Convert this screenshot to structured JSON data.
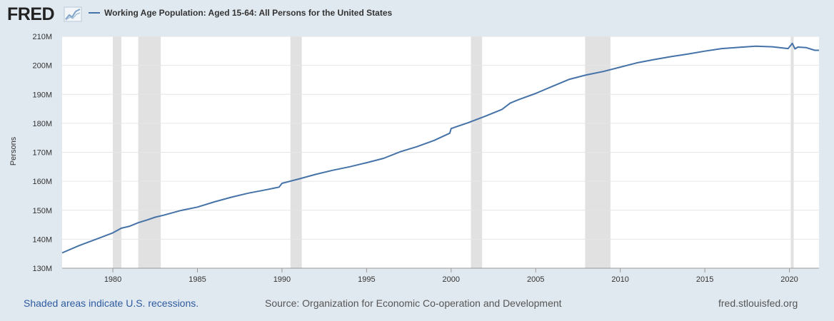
{
  "header": {
    "logo_text": "FRED",
    "logo_icon": "line-graph-icon",
    "legend_label": "Working Age Population: Aged 15-64: All Persons for the United States"
  },
  "footer": {
    "recessions_note": "Shaded areas indicate U.S. recessions.",
    "source": "Source: Organization for Economic Co-operation and Development",
    "site": "fred.stlouisfed.org"
  },
  "colors": {
    "background": "#e1e9f0",
    "plot_background": "#ffffff",
    "series": "#4572a7",
    "recession": "#e1e1e1",
    "grid": "#e6e6e6"
  },
  "chart_data": {
    "type": "line",
    "title": "",
    "xlabel": "",
    "ylabel": "Persons",
    "xlim": [
      1977.0,
      2021.75
    ],
    "ylim": [
      130,
      210
    ],
    "grid": true,
    "legend_position": "top",
    "x_ticks": [
      1980,
      1985,
      1990,
      1995,
      2000,
      2005,
      2010,
      2015,
      2020
    ],
    "x_tick_labels": [
      "1980",
      "1985",
      "1990",
      "1995",
      "2000",
      "2005",
      "2010",
      "2015",
      "2020"
    ],
    "y_ticks": [
      130,
      140,
      150,
      160,
      170,
      180,
      190,
      200,
      210
    ],
    "y_tick_labels": [
      "130M",
      "140M",
      "150M",
      "160M",
      "170M",
      "180M",
      "190M",
      "200M",
      "210M"
    ],
    "recessions": [
      [
        1980.0,
        1980.5
      ],
      [
        1981.5,
        1982.83
      ],
      [
        1990.5,
        1991.17
      ],
      [
        2001.17,
        2001.83
      ],
      [
        2007.92,
        2009.42
      ],
      [
        2020.08,
        2020.25
      ]
    ],
    "series": [
      {
        "name": "Working Age Population: Aged 15-64: All Persons for the United States",
        "x": [
          1977.0,
          1978.0,
          1979.0,
          1980.0,
          1980.5,
          1981.0,
          1981.5,
          1982.0,
          1982.5,
          1983.0,
          1984.0,
          1985.0,
          1986.0,
          1987.0,
          1988.0,
          1989.0,
          1989.83,
          1990.0,
          1991.0,
          1992.0,
          1993.0,
          1994.0,
          1995.0,
          1996.0,
          1997.0,
          1998.0,
          1999.0,
          1999.92,
          2000.0,
          2001.0,
          2002.0,
          2003.0,
          2003.5,
          2004.0,
          2005.0,
          2006.0,
          2007.0,
          2008.0,
          2009.0,
          2010.0,
          2011.0,
          2012.0,
          2013.0,
          2014.0,
          2015.0,
          2016.0,
          2017.0,
          2018.0,
          2019.0,
          2019.92,
          2020.17,
          2020.33,
          2020.5,
          2021.0,
          2021.5,
          2021.75
        ],
        "y": [
          135.3,
          137.8,
          140.0,
          142.2,
          143.8,
          144.5,
          145.7,
          146.6,
          147.6,
          148.3,
          149.9,
          151.1,
          152.9,
          154.5,
          155.9,
          157.0,
          158.0,
          159.3,
          160.8,
          162.4,
          163.8,
          165.0,
          166.4,
          167.9,
          170.2,
          172.0,
          174.1,
          176.6,
          178.2,
          180.2,
          182.4,
          184.8,
          187.0,
          188.2,
          190.3,
          192.8,
          195.2,
          196.7,
          197.9,
          199.4,
          200.9,
          202.0,
          203.0,
          203.9,
          204.9,
          205.8,
          206.2,
          206.6,
          206.4,
          205.8,
          207.6,
          205.7,
          206.3,
          206.1,
          205.2,
          205.2
        ]
      }
    ]
  }
}
